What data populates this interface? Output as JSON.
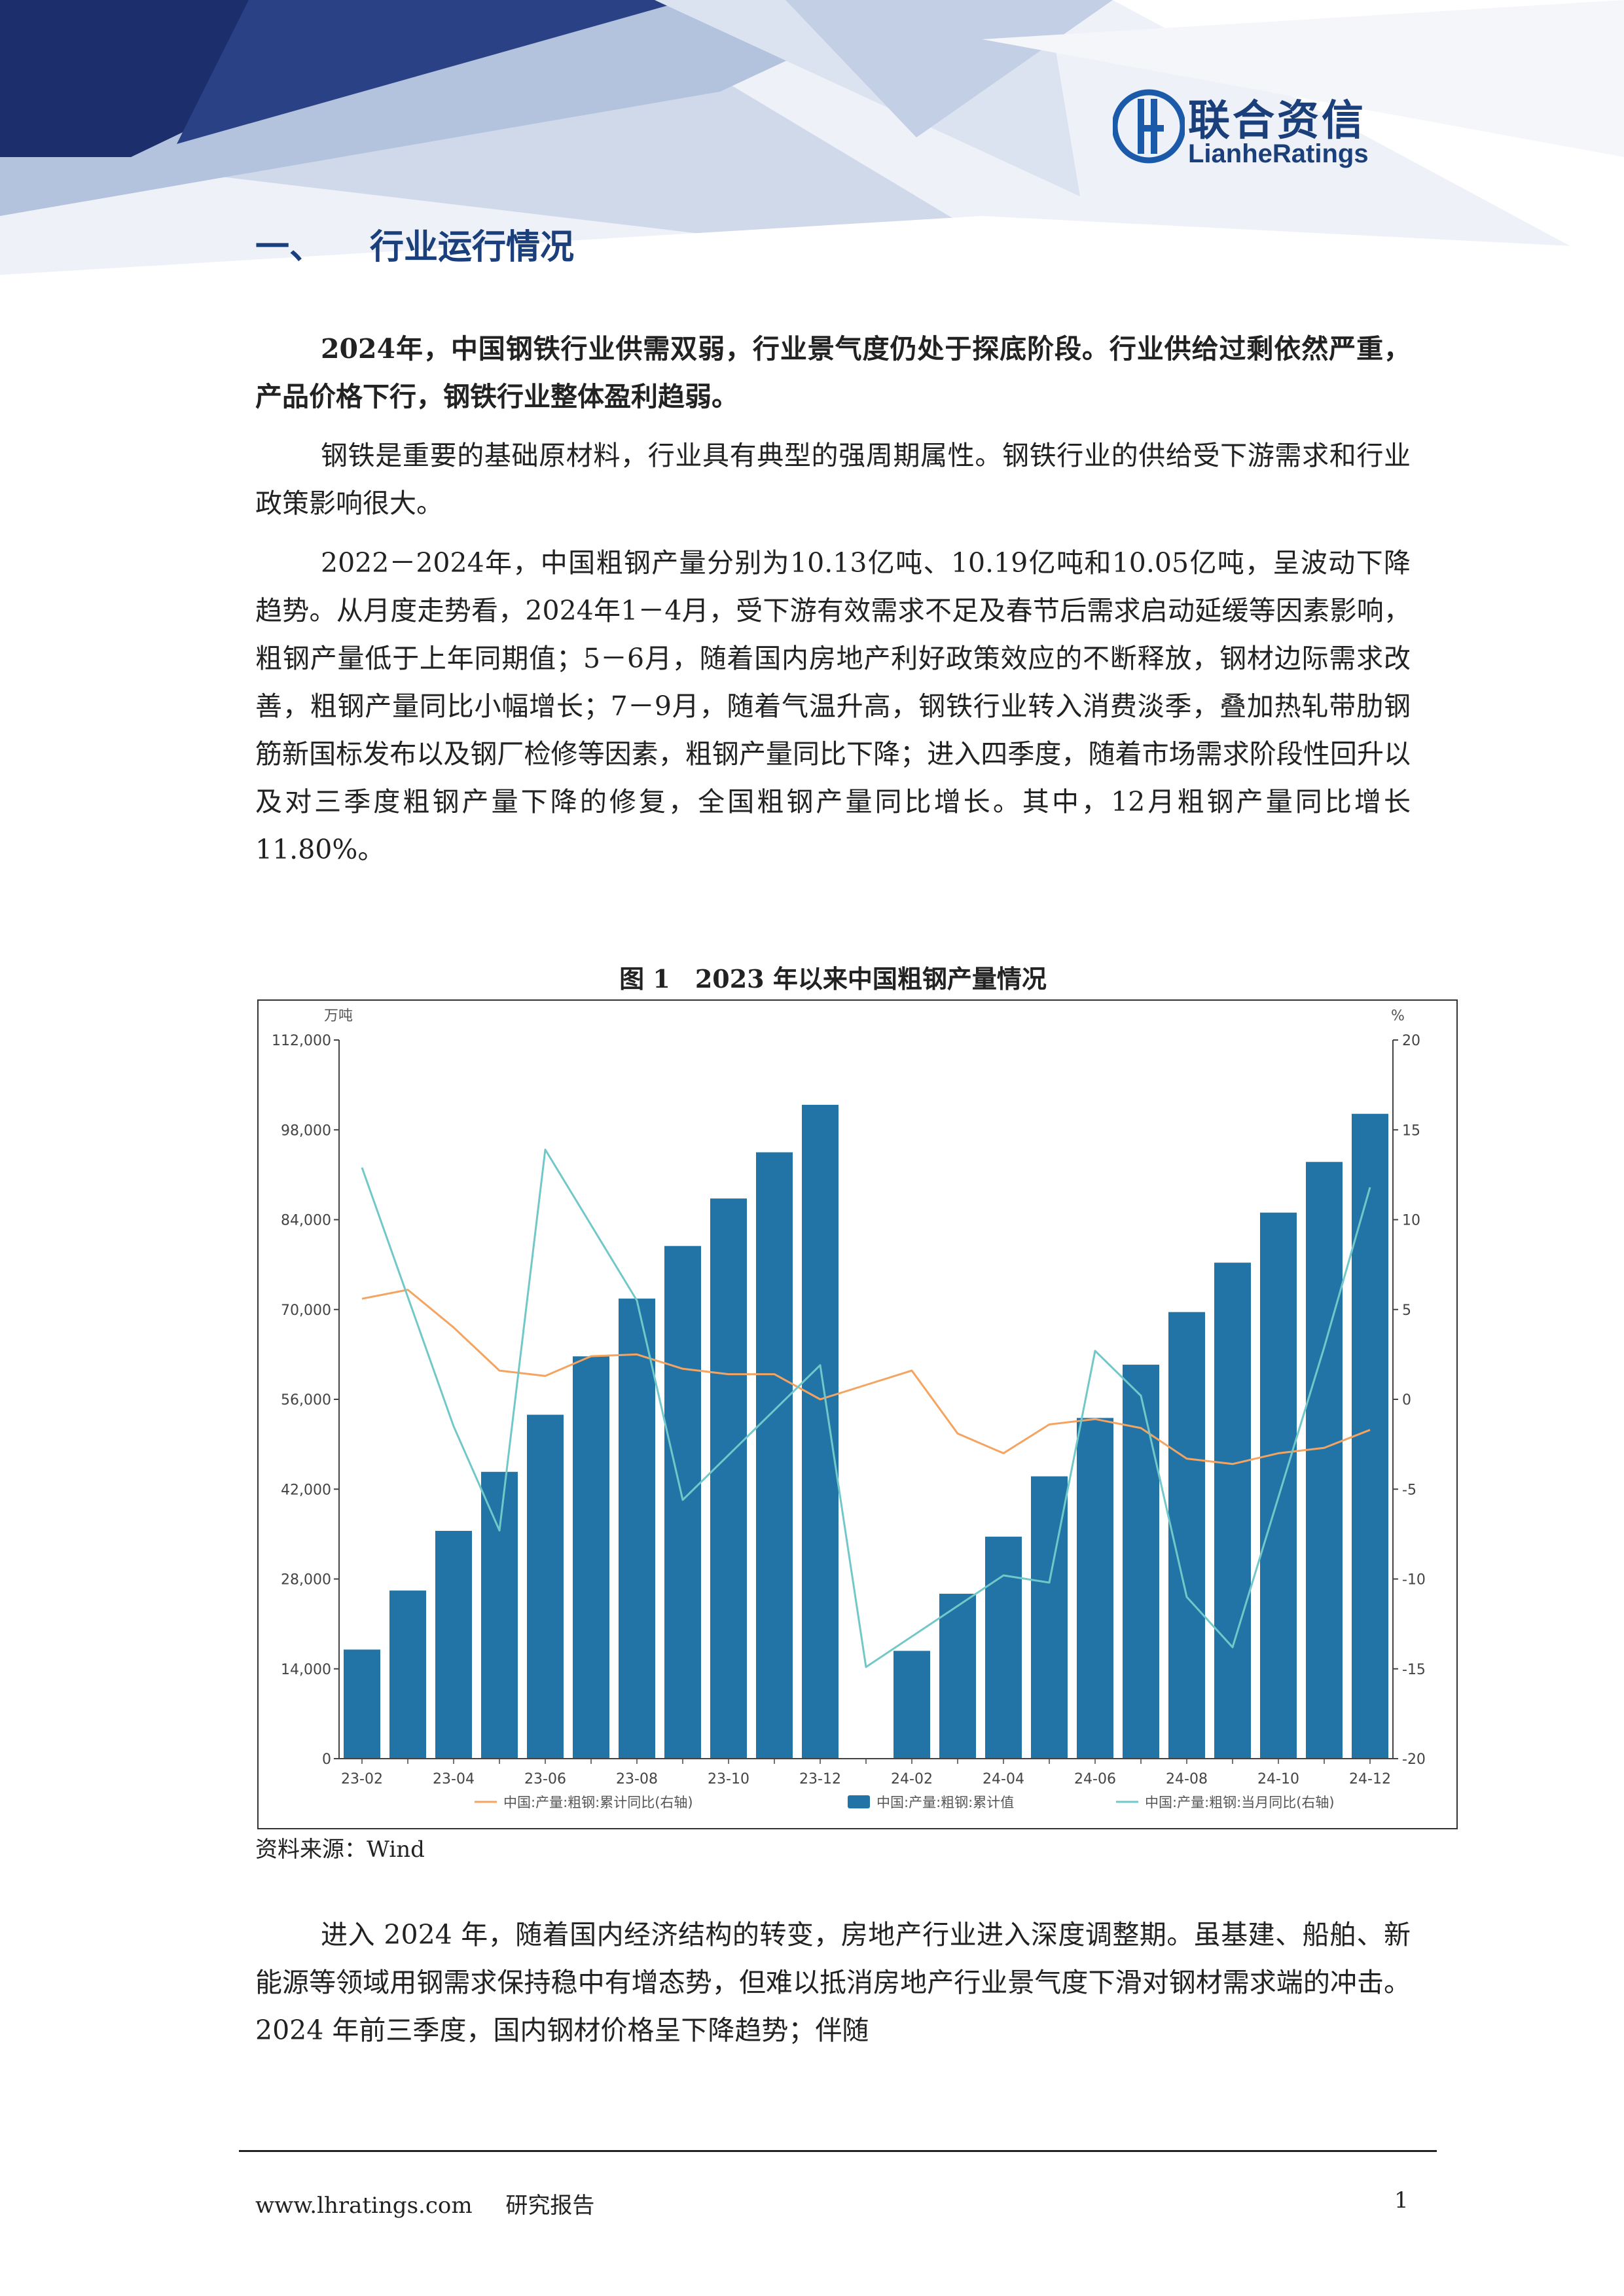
{
  "header": {
    "logo_cn": "联合资信",
    "logo_en": "LianheRatings"
  },
  "section": {
    "number": "一、",
    "title": "行业运行情况"
  },
  "paragraphs": {
    "p1": "2024年，中国钢铁行业供需双弱，行业景气度仍处于探底阶段。行业供给过剩依然严重，产品价格下行，钢铁行业整体盈利趋弱。",
    "p2": "钢铁是重要的基础原材料，行业具有典型的强周期属性。钢铁行业的供给受下游需求和行业政策影响很大。",
    "p3": "2022－2024年，中国粗钢产量分别为10.13亿吨、10.19亿吨和10.05亿吨，呈波动下降趋势。从月度走势看，2024年1－4月，受下游有效需求不足及春节后需求启动延缓等因素影响，粗钢产量低于上年同期值；5－6月，随着国内房地产利好政策效应的不断释放，钢材边际需求改善，粗钢产量同比小幅增长；7－9月，随着气温升高，钢铁行业转入消费淡季，叠加热轧带肋钢筋新国标发布以及钢厂检修等因素，粗钢产量同比下降；进入四季度，随着市场需求阶段性回升以及对三季度粗钢产量下降的修复，全国粗钢产量同比增长。其中，12月粗钢产量同比增长11.80%。",
    "p4": "进入 2024 年，随着国内经济结构的转变，房地产行业进入深度调整期。虽基建、船舶、新能源等领域用钢需求保持稳中有增态势，但难以抵消房地产行业景气度下滑对钢材需求端的冲击。2024 年前三季度，国内钢材价格呈下降趋势；伴随"
  },
  "figure": {
    "caption": "图 1　2023 年以来中国粗钢产量情况",
    "source": "资料来源：Wind"
  },
  "colors": {
    "bar": "#2374a6",
    "cum_yoy": "#f4a460",
    "month_yoy": "#72c8c8"
  },
  "chart_data": {
    "type": "bar",
    "left_unit": "万吨",
    "right_unit": "%",
    "ylim_left": [
      0,
      112000
    ],
    "ylim_right": [
      -20,
      20
    ],
    "left_ticks": [
      "0",
      "14,000",
      "28,000",
      "42,000",
      "56,000",
      "70,000",
      "84,000",
      "98,000",
      "112,000"
    ],
    "right_ticks": [
      "-20",
      "-15",
      "-10",
      "-5",
      "0",
      "5",
      "10",
      "15",
      "20"
    ],
    "categories": [
      "23-02",
      "23-03",
      "23-04",
      "23-05",
      "23-06",
      "23-07",
      "23-08",
      "23-09",
      "23-10",
      "23-11",
      "23-12",
      "24-01",
      "24-02",
      "24-03",
      "24-04",
      "24-05",
      "24-06",
      "24-07",
      "24-08",
      "24-09",
      "24-10",
      "24-11",
      "24-12"
    ],
    "x_tick_labels": [
      "23-02",
      "23-04",
      "23-06",
      "23-08",
      "23-10",
      "23-12",
      "24-02",
      "24-04",
      "24-06",
      "24-08",
      "24-10",
      "24-12"
    ],
    "series": [
      {
        "name": "中国:产量:粗钢:累计值",
        "axis": "left",
        "kind": "bar",
        "values": [
          17000,
          26200,
          35500,
          44700,
          53600,
          62700,
          71700,
          79900,
          87300,
          94500,
          101900,
          null,
          16800,
          25700,
          34600,
          44000,
          53100,
          61400,
          69600,
          77300,
          85100,
          93000,
          100500
        ]
      },
      {
        "name": "中国:产量:粗钢:累计同比(右轴)",
        "axis": "right",
        "kind": "line",
        "values": [
          5.6,
          6.1,
          4.0,
          1.6,
          1.3,
          2.4,
          2.5,
          1.7,
          1.4,
          1.4,
          0.0,
          0.8,
          1.6,
          -1.9,
          -3.0,
          -1.4,
          -1.1,
          -1.6,
          -3.3,
          -3.6,
          -3.0,
          -2.7,
          -1.7
        ]
      },
      {
        "name": "中国:产量:粗钢:当月同比(右轴)",
        "axis": "right",
        "kind": "line",
        "values": [
          12.9,
          null,
          -1.5,
          -7.3,
          13.9,
          null,
          5.5,
          -5.6,
          null,
          null,
          1.9,
          -14.9,
          null,
          null,
          -9.8,
          -10.2,
          2.7,
          0.2,
          -11.0,
          -13.8,
          null,
          2.9,
          11.8
        ]
      }
    ],
    "legend": [
      "中国:产量:粗钢:累计同比(右轴)",
      "中国:产量:粗钢:累计值",
      "中国:产量:粗钢:当月同比(右轴)"
    ],
    "legend_position": "bottom"
  },
  "footer": {
    "website": "www.lhratings.com",
    "report_type": "研究报告",
    "page": "1"
  }
}
